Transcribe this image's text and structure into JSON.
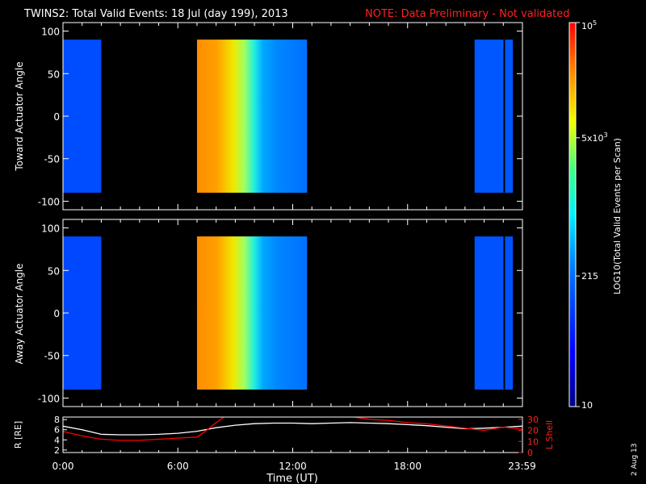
{
  "chart_data": [
    {
      "type": "heatmap",
      "panel": "toward",
      "title": "TWINS2: Total Valid Events: 18 Jul (day 199), 2013",
      "note": "NOTE: Data Preliminary - Not validated",
      "ylabel": "Toward Actuator Angle",
      "ylim": [
        -110,
        110
      ],
      "yticks": [
        "100",
        "50",
        "0",
        "-50",
        "-100"
      ],
      "xlim": [
        0,
        24
      ],
      "angle_range": [
        -90,
        90
      ],
      "coverage": [
        {
          "start": 0.0,
          "end": 2.0,
          "level": 0.28
        },
        {
          "start": 7.0,
          "end": 12.75,
          "level": "ramp"
        },
        {
          "start": 21.5,
          "end": 23.5,
          "level": 0.3
        }
      ]
    },
    {
      "type": "heatmap",
      "panel": "away",
      "ylabel": "Away Actuator Angle",
      "ylim": [
        -110,
        110
      ],
      "yticks": [
        "100",
        "50",
        "0",
        "-50",
        "-100"
      ],
      "xlim": [
        0,
        24
      ],
      "angle_range": [
        -90,
        90
      ],
      "coverage": [
        {
          "start": 0.0,
          "end": 2.0,
          "level": 0.27
        },
        {
          "start": 7.0,
          "end": 12.75,
          "level": "ramp"
        },
        {
          "start": 21.5,
          "end": 23.5,
          "level": 0.29
        }
      ]
    },
    {
      "type": "line",
      "panel": "orbit",
      "ylabel_left": "R [RE]",
      "ylabel_right": "L Shell",
      "yticks_left": [
        "8",
        "6",
        "4",
        "2"
      ],
      "yticks_right": [
        "30",
        "20",
        "10",
        "0"
      ],
      "ylim_left": [
        1.5,
        8.5
      ],
      "ylim_right": [
        0,
        32
      ],
      "xlabel": "Time (UT)",
      "xticks": [
        "0:00",
        "6:00",
        "12:00",
        "18:00",
        "23:59"
      ],
      "series": [
        {
          "color": "#ffffff",
          "axis": "left",
          "x": [
            0,
            1,
            2,
            3,
            4,
            5,
            6,
            7,
            8,
            9,
            10,
            11,
            12,
            13,
            14,
            15,
            16,
            17,
            18,
            19,
            20,
            21,
            22,
            23,
            24
          ],
          "y": [
            6.7,
            6.0,
            5.1,
            5.0,
            5.0,
            5.1,
            5.3,
            5.7,
            6.4,
            6.9,
            7.2,
            7.3,
            7.3,
            7.2,
            7.3,
            7.4,
            7.3,
            7.2,
            7.0,
            6.8,
            6.5,
            6.2,
            6.3,
            6.5,
            6.7
          ]
        },
        {
          "color": "#ff0000",
          "axis": "right",
          "x": [
            0,
            1,
            2,
            3,
            4,
            5,
            6,
            7,
            7.5,
            8,
            8.4
          ],
          "y": [
            19,
            15,
            12,
            11,
            11,
            12,
            13,
            14,
            20,
            27,
            32
          ]
        },
        {
          "color": "#ff0000",
          "axis": "right",
          "x": [
            15.2,
            16,
            17,
            18,
            19,
            20,
            21,
            22,
            23,
            24
          ],
          "y": [
            32,
            30,
            29,
            27,
            26,
            24,
            22,
            20,
            23,
            21
          ]
        }
      ]
    }
  ],
  "colorbar": {
    "label": "LOG10(Total Valid Events per Scan)",
    "ticks": [
      {
        "text": "10",
        "sup": "5",
        "frac": 1.0
      },
      {
        "text": "5x10",
        "sup": "3",
        "frac": 0.7
      },
      {
        "text": "215",
        "sup": "",
        "frac": 0.34
      },
      {
        "text": "10",
        "sup": "",
        "frac": 0.0
      }
    ]
  },
  "footer_date": "2 Aug 13"
}
